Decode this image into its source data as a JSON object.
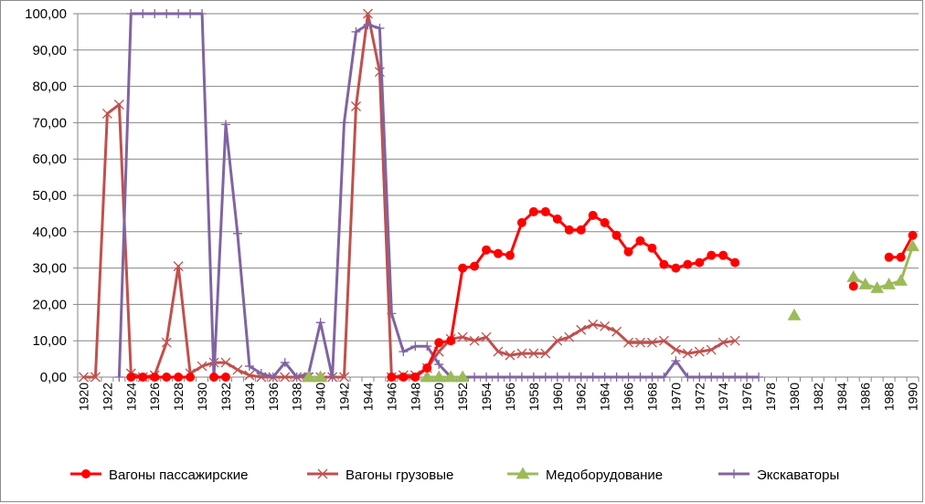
{
  "chart_data": {
    "type": "line",
    "title": "",
    "xlabel": "",
    "ylabel": "",
    "xlim": [
      1920,
      1990
    ],
    "ylim": [
      0,
      100
    ],
    "y_ticks": [
      "0,00",
      "10,00",
      "20,00",
      "30,00",
      "40,00",
      "50,00",
      "60,00",
      "70,00",
      "80,00",
      "90,00",
      "100,00"
    ],
    "x_ticks": [
      "1920",
      "1922",
      "1924",
      "1926",
      "1928",
      "1930",
      "1932",
      "1934",
      "1936",
      "1938",
      "1940",
      "1942",
      "1944",
      "1946",
      "1948",
      "1950",
      "1952",
      "1954",
      "1956",
      "1958",
      "1960",
      "1962",
      "1964",
      "1966",
      "1968",
      "1970",
      "1972",
      "1974",
      "1976",
      "1978",
      "1980",
      "1982",
      "1984",
      "1986",
      "1988",
      "1990"
    ],
    "grid": "horizontal",
    "legend": "bottom",
    "series": [
      {
        "name": "Вагоны пассажирские",
        "color": "#ff0000",
        "marker": "circle",
        "points": [
          [
            1924,
            0
          ],
          [
            1925,
            0
          ],
          [
            1926,
            0
          ],
          [
            1927,
            0
          ],
          [
            1928,
            0
          ],
          [
            1929,
            0
          ],
          [
            null,
            null
          ],
          [
            1931,
            0
          ],
          [
            1932,
            0
          ],
          [
            null,
            null
          ],
          [
            1946,
            0
          ],
          [
            1947,
            0
          ],
          [
            1948,
            0
          ],
          [
            1949,
            2.5
          ],
          [
            1950,
            9.5
          ],
          [
            1951,
            10
          ],
          [
            1952,
            30
          ],
          [
            1953,
            30.5
          ],
          [
            1954,
            35
          ],
          [
            1955,
            34
          ],
          [
            1956,
            33.5
          ],
          [
            1957,
            42.5
          ],
          [
            1958,
            45.5
          ],
          [
            1959,
            45.5
          ],
          [
            1960,
            43.5
          ],
          [
            1961,
            40.5
          ],
          [
            1962,
            40.5
          ],
          [
            1963,
            44.5
          ],
          [
            1964,
            42.5
          ],
          [
            1965,
            39
          ],
          [
            1966,
            34.5
          ],
          [
            1967,
            37.5
          ],
          [
            1968,
            35.5
          ],
          [
            1969,
            31
          ],
          [
            1970,
            30
          ],
          [
            1971,
            31
          ],
          [
            1972,
            31.5
          ],
          [
            1973,
            33.5
          ],
          [
            1974,
            33.5
          ],
          [
            1975,
            31.5
          ],
          [
            null,
            null
          ],
          [
            1985,
            25
          ],
          [
            null,
            null
          ],
          [
            1988,
            33
          ],
          [
            1989,
            33
          ],
          [
            1990,
            39
          ]
        ]
      },
      {
        "name": "Вагоны грузовые",
        "color": "#c0504d",
        "marker": "x",
        "points": [
          [
            1920,
            0
          ],
          [
            1921,
            0
          ],
          [
            1922,
            72.5
          ],
          [
            1923,
            75
          ],
          [
            1924,
            1
          ],
          [
            1925,
            0
          ],
          [
            1926,
            0.5
          ],
          [
            1927,
            9.5
          ],
          [
            1928,
            30.5
          ],
          [
            1929,
            1
          ],
          [
            1930,
            3
          ],
          [
            1931,
            4
          ],
          [
            1932,
            4
          ],
          [
            1933,
            2
          ],
          [
            1934,
            0.5
          ],
          [
            1935,
            0
          ],
          [
            1936,
            0
          ],
          [
            1937,
            0
          ],
          [
            1938,
            0
          ],
          [
            1939,
            0
          ],
          [
            1940,
            0
          ],
          [
            1941,
            0
          ],
          [
            1942,
            0
          ],
          [
            1943,
            74.5
          ],
          [
            1944,
            100
          ],
          [
            1945,
            84
          ],
          [
            1946,
            0
          ],
          [
            1947,
            0.5
          ],
          [
            1948,
            0.5
          ],
          [
            1949,
            2.5
          ],
          [
            1950,
            7
          ],
          [
            1951,
            10.5
          ],
          [
            1952,
            11
          ],
          [
            1953,
            10
          ],
          [
            1954,
            11
          ],
          [
            1955,
            7
          ],
          [
            1956,
            6
          ],
          [
            1957,
            6.5
          ],
          [
            1958,
            6.5
          ],
          [
            1959,
            6.5
          ],
          [
            1960,
            10
          ],
          [
            1961,
            11
          ],
          [
            1962,
            13
          ],
          [
            1963,
            14.5
          ],
          [
            1964,
            14
          ],
          [
            1965,
            12.5
          ],
          [
            1966,
            9.5
          ],
          [
            1967,
            9.5
          ],
          [
            1968,
            9.5
          ],
          [
            1969,
            10
          ],
          [
            1970,
            7.5
          ],
          [
            1971,
            6.5
          ],
          [
            1972,
            7
          ],
          [
            1973,
            7.5
          ],
          [
            1974,
            9.5
          ],
          [
            1975,
            10
          ]
        ]
      },
      {
        "name": "Медоборудование",
        "color": "#9bbb59",
        "marker": "triangle",
        "points": [
          [
            1939,
            0
          ],
          [
            1940,
            0
          ],
          [
            null,
            null
          ],
          [
            1949,
            0
          ],
          [
            1950,
            0
          ],
          [
            1951,
            0
          ],
          [
            1952,
            0
          ],
          [
            null,
            null
          ],
          [
            1980,
            17
          ],
          [
            null,
            null
          ],
          [
            1985,
            27.5
          ],
          [
            1986,
            25.5
          ],
          [
            1987,
            24.5
          ],
          [
            1988,
            25.5
          ],
          [
            1989,
            26.5
          ],
          [
            1990,
            36
          ]
        ]
      },
      {
        "name": "Экскаваторы",
        "color": "#8064a2",
        "marker": "plus",
        "points": [
          [
            1923,
            0
          ],
          [
            1924,
            100
          ],
          [
            1925,
            100
          ],
          [
            1926,
            100
          ],
          [
            1927,
            100
          ],
          [
            1928,
            100
          ],
          [
            1929,
            100
          ],
          [
            1930,
            100
          ],
          [
            1931,
            0
          ],
          [
            1932,
            69.5
          ],
          [
            1933,
            39.5
          ],
          [
            1934,
            3
          ],
          [
            1935,
            1
          ],
          [
            1936,
            0
          ],
          [
            1937,
            4
          ],
          [
            1938,
            0
          ],
          [
            1939,
            1
          ],
          [
            1940,
            15
          ],
          [
            1941,
            0
          ],
          [
            1942,
            70
          ],
          [
            1943,
            95
          ],
          [
            1944,
            97
          ],
          [
            1945,
            96
          ],
          [
            1946,
            17.5
          ],
          [
            1947,
            7
          ],
          [
            1948,
            8.5
          ],
          [
            1949,
            8.5
          ],
          [
            1950,
            3.5
          ],
          [
            1951,
            0
          ],
          [
            1952,
            0
          ],
          [
            1953,
            0
          ],
          [
            1954,
            0
          ],
          [
            1955,
            0
          ],
          [
            1956,
            0
          ],
          [
            1957,
            0
          ],
          [
            1958,
            0
          ],
          [
            1959,
            0
          ],
          [
            1960,
            0
          ],
          [
            1961,
            0
          ],
          [
            1962,
            0
          ],
          [
            1963,
            0
          ],
          [
            1964,
            0
          ],
          [
            1965,
            0
          ],
          [
            1966,
            0
          ],
          [
            1967,
            0
          ],
          [
            1968,
            0
          ],
          [
            1969,
            0
          ],
          [
            1970,
            4.5
          ],
          [
            1971,
            0
          ],
          [
            1972,
            0
          ],
          [
            1973,
            0
          ],
          [
            1974,
            0
          ],
          [
            1975,
            0
          ],
          [
            1976,
            0
          ],
          [
            1977,
            0
          ]
        ]
      }
    ]
  }
}
